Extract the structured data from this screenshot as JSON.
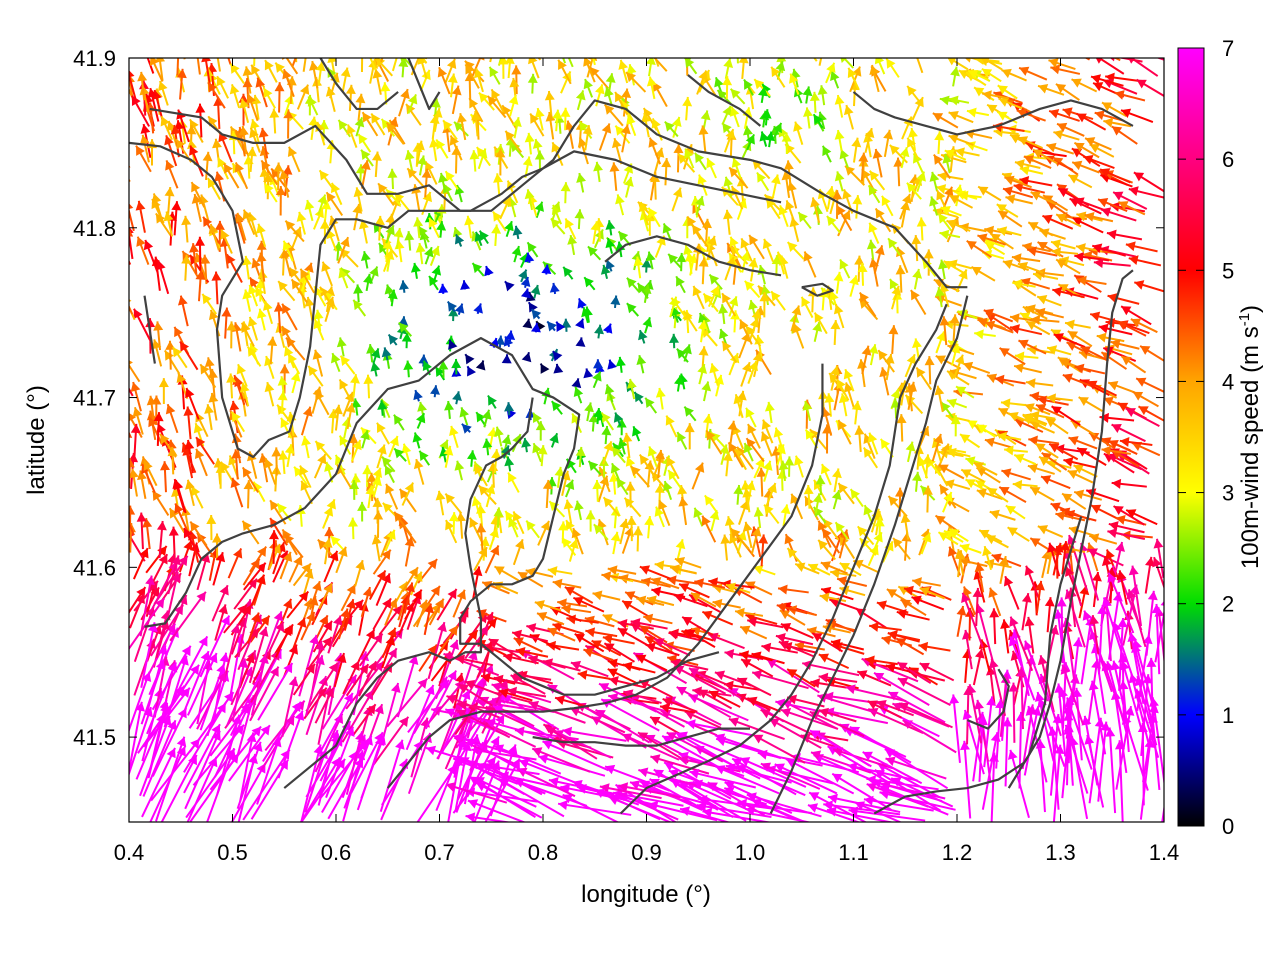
{
  "chart_data": {
    "type": "vector-field",
    "title": "",
    "xlabel": "longitude (°)",
    "ylabel": "latitude (°)",
    "xlim": [
      0.4,
      1.4
    ],
    "ylim": [
      41.45,
      41.9
    ],
    "xticks": [
      "0.4",
      "0.5",
      "0.6",
      "0.7",
      "0.8",
      "0.9",
      "1.0",
      "1.1",
      "1.2",
      "1.3",
      "1.4"
    ],
    "yticks": [
      "41.5",
      "41.6",
      "41.7",
      "41.8",
      "41.9"
    ],
    "grid": false,
    "colorbar": {
      "label_main": "100m-wind speed (m s",
      "label_sup": "-1",
      "label_end": ")",
      "range": [
        0,
        7
      ],
      "ticks": [
        "0",
        "1",
        "2",
        "3",
        "4",
        "5",
        "6",
        "7"
      ],
      "colors": [
        "#000000",
        "#0000ff",
        "#00dd00",
        "#ffff00",
        "#ffa500",
        "#ff0000",
        "#ff00ff"
      ]
    },
    "contour_color": "#404040",
    "contours": [
      [
        [
          0.42,
          41.87
        ],
        [
          0.47,
          41.865
        ],
        [
          0.49,
          41.855
        ],
        [
          0.52,
          41.85
        ],
        [
          0.55,
          41.85
        ],
        [
          0.58,
          41.86
        ],
        [
          0.61,
          41.84
        ],
        [
          0.63,
          41.82
        ],
        [
          0.66,
          41.82
        ],
        [
          0.69,
          41.825
        ],
        [
          0.72,
          41.81
        ],
        [
          0.75,
          41.81
        ],
        [
          0.78,
          41.825
        ],
        [
          0.81,
          41.84
        ],
        [
          0.83,
          41.86
        ],
        [
          0.85,
          41.875
        ],
        [
          0.88,
          41.87
        ],
        [
          0.91,
          41.855
        ],
        [
          0.95,
          41.845
        ],
        [
          1.0,
          41.84
        ],
        [
          1.03,
          41.835
        ],
        [
          1.07,
          41.82
        ],
        [
          1.1,
          41.81
        ],
        [
          1.14,
          41.8
        ],
        [
          1.17,
          41.78
        ],
        [
          1.19,
          41.765
        ],
        [
          1.21,
          41.765
        ]
      ],
      [
        [
          0.4,
          41.85
        ],
        [
          0.43,
          41.848
        ],
        [
          0.46,
          41.84
        ],
        [
          0.48,
          41.83
        ],
        [
          0.5,
          41.81
        ],
        [
          0.51,
          41.78
        ],
        [
          0.49,
          41.76
        ],
        [
          0.485,
          41.74
        ],
        [
          0.49,
          41.7
        ],
        [
          0.505,
          41.67
        ],
        [
          0.52,
          41.665
        ],
        [
          0.535,
          41.675
        ],
        [
          0.555,
          41.68
        ],
        [
          0.565,
          41.7
        ],
        [
          0.575,
          41.73
        ],
        [
          0.58,
          41.76
        ],
        [
          0.585,
          41.79
        ],
        [
          0.6,
          41.805
        ],
        [
          0.62,
          41.805
        ],
        [
          0.65,
          41.8
        ],
        [
          0.67,
          41.81
        ],
        [
          0.7,
          41.81
        ],
        [
          0.73,
          41.81
        ],
        [
          0.76,
          41.82
        ],
        [
          0.78,
          41.83
        ],
        [
          0.8,
          41.835
        ],
        [
          0.83,
          41.845
        ],
        [
          0.87,
          41.84
        ],
        [
          0.91,
          41.83
        ],
        [
          0.95,
          41.825
        ],
        [
          0.99,
          41.82
        ],
        [
          1.03,
          41.815
        ]
      ],
      [
        [
          0.415,
          41.565
        ],
        [
          0.435,
          41.567
        ],
        [
          0.455,
          41.585
        ],
        [
          0.47,
          41.605
        ],
        [
          0.49,
          41.615
        ],
        [
          0.51,
          41.62
        ],
        [
          0.54,
          41.625
        ],
        [
          0.57,
          41.635
        ],
        [
          0.6,
          41.655
        ],
        [
          0.62,
          41.685
        ],
        [
          0.65,
          41.705
        ],
        [
          0.68,
          41.71
        ],
        [
          0.71,
          41.725
        ],
        [
          0.74,
          41.735
        ],
        [
          0.77,
          41.725
        ],
        [
          0.79,
          41.705
        ],
        [
          0.81,
          41.7
        ],
        [
          0.835,
          41.69
        ],
        [
          0.83,
          41.67
        ],
        [
          0.82,
          41.655
        ],
        [
          0.81,
          41.63
        ],
        [
          0.8,
          41.605
        ],
        [
          0.79,
          41.595
        ],
        [
          0.77,
          41.59
        ],
        [
          0.75,
          41.59
        ],
        [
          0.73,
          41.58
        ],
        [
          0.72,
          41.57
        ],
        [
          0.72,
          41.555
        ],
        [
          0.74,
          41.555
        ],
        [
          0.76,
          41.545
        ],
        [
          0.78,
          41.535
        ],
        [
          0.8,
          41.53
        ],
        [
          0.82,
          41.525
        ],
        [
          0.85,
          41.525
        ],
        [
          0.88,
          41.53
        ],
        [
          0.91,
          41.535
        ],
        [
          0.94,
          41.545
        ],
        [
          0.97,
          41.55
        ]
      ],
      [
        [
          0.55,
          41.47
        ],
        [
          0.58,
          41.485
        ],
        [
          0.6,
          41.495
        ],
        [
          0.62,
          41.52
        ],
        [
          0.64,
          41.535
        ],
        [
          0.66,
          41.545
        ],
        [
          0.69,
          41.55
        ],
        [
          0.71,
          41.545
        ],
        [
          0.725,
          41.55
        ],
        [
          0.74,
          41.55
        ],
        [
          0.74,
          41.57
        ],
        [
          0.73,
          41.6
        ],
        [
          0.725,
          41.62
        ],
        [
          0.73,
          41.64
        ],
        [
          0.745,
          41.66
        ],
        [
          0.76,
          41.665
        ],
        [
          0.77,
          41.67
        ],
        [
          0.785,
          41.68
        ],
        [
          0.79,
          41.7
        ]
      ],
      [
        [
          0.65,
          41.47
        ],
        [
          0.67,
          41.485
        ],
        [
          0.69,
          41.5
        ],
        [
          0.71,
          41.51
        ],
        [
          0.74,
          41.515
        ],
        [
          0.77,
          41.515
        ],
        [
          0.8,
          41.515
        ],
        [
          0.83,
          41.517
        ],
        [
          0.86,
          41.52
        ],
        [
          0.89,
          41.525
        ],
        [
          0.92,
          41.535
        ],
        [
          0.95,
          41.555
        ],
        [
          0.98,
          41.58
        ],
        [
          1.01,
          41.605
        ],
        [
          1.04,
          41.63
        ],
        [
          1.06,
          41.66
        ],
        [
          1.07,
          41.69
        ],
        [
          1.07,
          41.72
        ]
      ],
      [
        [
          0.79,
          41.5
        ],
        [
          0.82,
          41.497
        ],
        [
          0.85,
          41.497
        ],
        [
          0.88,
          41.495
        ],
        [
          0.91,
          41.495
        ],
        [
          0.94,
          41.5
        ],
        [
          0.97,
          41.505
        ],
        [
          1.0,
          41.505
        ]
      ],
      [
        [
          0.875,
          41.455
        ],
        [
          0.9,
          41.47
        ],
        [
          0.93,
          41.478
        ],
        [
          0.96,
          41.486
        ],
        [
          0.99,
          41.495
        ],
        [
          1.02,
          41.51
        ],
        [
          1.04,
          41.525
        ],
        [
          1.06,
          41.545
        ],
        [
          1.08,
          41.57
        ],
        [
          1.1,
          41.6
        ],
        [
          1.12,
          41.63
        ],
        [
          1.135,
          41.66
        ],
        [
          1.145,
          41.7
        ],
        [
          1.16,
          41.72
        ],
        [
          1.18,
          41.74
        ],
        [
          1.19,
          41.755
        ]
      ],
      [
        [
          1.02,
          41.455
        ],
        [
          1.04,
          41.48
        ],
        [
          1.06,
          41.51
        ],
        [
          1.08,
          41.535
        ],
        [
          1.1,
          41.56
        ],
        [
          1.12,
          41.59
        ],
        [
          1.14,
          41.625
        ],
        [
          1.155,
          41.655
        ],
        [
          1.17,
          41.685
        ],
        [
          1.18,
          41.71
        ],
        [
          1.2,
          41.735
        ],
        [
          1.21,
          41.76
        ]
      ],
      [
        [
          1.12,
          41.455
        ],
        [
          1.15,
          41.465
        ],
        [
          1.18,
          41.468
        ],
        [
          1.21,
          41.47
        ],
        [
          1.24,
          41.475
        ],
        [
          1.265,
          41.485
        ],
        [
          1.28,
          41.5
        ],
        [
          1.29,
          41.52
        ],
        [
          1.3,
          41.545
        ],
        [
          1.31,
          41.58
        ],
        [
          1.32,
          41.61
        ],
        [
          1.33,
          41.64
        ],
        [
          1.34,
          41.68
        ],
        [
          1.345,
          41.72
        ],
        [
          1.35,
          41.75
        ],
        [
          1.36,
          41.77
        ],
        [
          1.37,
          41.775
        ]
      ],
      [
        [
          1.21,
          41.51
        ],
        [
          1.23,
          41.505
        ],
        [
          1.245,
          41.515
        ],
        [
          1.25,
          41.53
        ],
        [
          1.24,
          41.54
        ]
      ],
      [
        [
          1.25,
          41.47
        ],
        [
          1.27,
          41.49
        ],
        [
          1.285,
          41.52
        ],
        [
          1.29,
          41.56
        ],
        [
          1.3,
          41.59
        ],
        [
          1.31,
          41.61
        ],
        [
          1.32,
          41.63
        ]
      ],
      [
        [
          1.1,
          41.88
        ],
        [
          1.12,
          41.87
        ],
        [
          1.14,
          41.865
        ],
        [
          1.17,
          41.86
        ],
        [
          1.2,
          41.855
        ],
        [
          1.24,
          41.86
        ],
        [
          1.28,
          41.87
        ],
        [
          1.31,
          41.875
        ],
        [
          1.34,
          41.87
        ],
        [
          1.37,
          41.86
        ]
      ],
      [
        [
          0.94,
          41.89
        ],
        [
          0.96,
          41.88
        ],
        [
          0.99,
          41.87
        ],
        [
          1.01,
          41.86
        ]
      ],
      [
        [
          0.67,
          41.9
        ],
        [
          0.68,
          41.885
        ],
        [
          0.69,
          41.87
        ],
        [
          0.7,
          41.88
        ]
      ],
      [
        [
          0.585,
          41.9
        ],
        [
          0.6,
          41.885
        ],
        [
          0.62,
          41.87
        ],
        [
          0.64,
          41.87
        ],
        [
          0.66,
          41.88
        ]
      ],
      [
        [
          1.05,
          41.765
        ],
        [
          1.07,
          41.767
        ],
        [
          1.08,
          41.763
        ],
        [
          1.065,
          41.76
        ],
        [
          1.05,
          41.765
        ]
      ],
      [
        [
          0.415,
          41.76
        ],
        [
          0.42,
          41.74
        ],
        [
          0.425,
          41.72
        ]
      ],
      [
        [
          0.86,
          41.78
        ],
        [
          0.88,
          41.79
        ],
        [
          0.91,
          41.795
        ],
        [
          0.94,
          41.79
        ],
        [
          0.97,
          41.78
        ],
        [
          1.0,
          41.775
        ],
        [
          1.03,
          41.772
        ]
      ]
    ]
  }
}
